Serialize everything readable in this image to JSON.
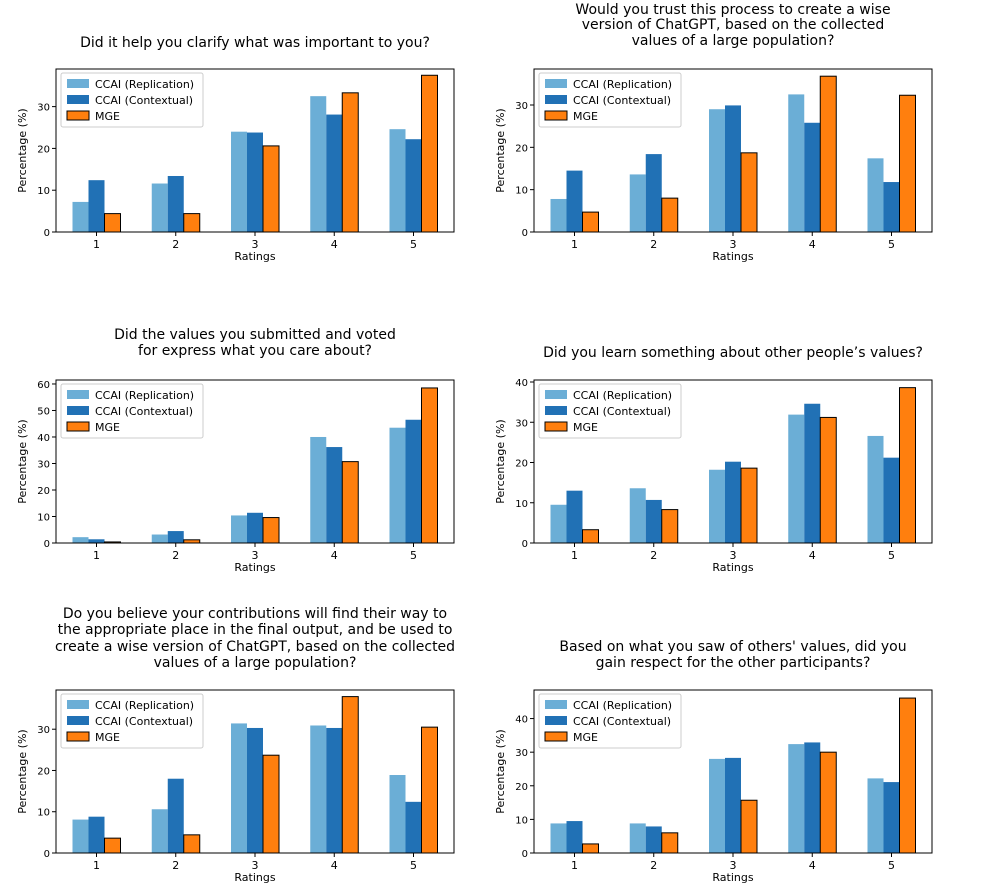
{
  "colors": {
    "replication": "#6baed6",
    "contextual": "#2171b5",
    "mge": "#ff7f0e",
    "axis": "#000000",
    "text": "#000000"
  },
  "chart_data": [
    {
      "type": "bar",
      "title": "Did it help you clarify what was important to you?",
      "xlabel": "Ratings",
      "ylabel": "Percentage (%)",
      "categories": [
        "1",
        "2",
        "3",
        "4",
        "5"
      ],
      "ylim": [
        0,
        39
      ],
      "yticks": [
        0,
        10,
        20,
        30
      ],
      "legend_position": "upper-left",
      "series": [
        {
          "name": "CCAI (Replication)",
          "values": [
            7.2,
            11.6,
            24.0,
            32.5,
            24.6
          ]
        },
        {
          "name": "CCAI (Contextual)",
          "values": [
            12.4,
            13.4,
            23.8,
            28.1,
            22.2
          ]
        },
        {
          "name": "MGE",
          "values": [
            4.4,
            4.4,
            20.6,
            33.3,
            37.5
          ]
        }
      ]
    },
    {
      "type": "bar",
      "title": "Would you trust this process to create a wise version of ChatGPT, based on the collected values of a large population?",
      "xlabel": "Ratings",
      "ylabel": "Percentage (%)",
      "categories": [
        "1",
        "2",
        "3",
        "4",
        "5"
      ],
      "ylim": [
        0,
        38.5
      ],
      "yticks": [
        0,
        10,
        20,
        30
      ],
      "legend_position": "upper-left",
      "series": [
        {
          "name": "CCAI (Replication)",
          "values": [
            7.8,
            13.6,
            29.0,
            32.5,
            17.4
          ]
        },
        {
          "name": "CCAI (Contextual)",
          "values": [
            14.5,
            18.4,
            29.9,
            25.8,
            11.8
          ]
        },
        {
          "name": "MGE",
          "values": [
            4.7,
            8.0,
            18.7,
            36.8,
            32.3
          ]
        }
      ]
    },
    {
      "type": "bar",
      "title": "Did the values you submitted and voted for express what you care about?",
      "xlabel": "Ratings",
      "ylabel": "Percentage (%)",
      "categories": [
        "1",
        "2",
        "3",
        "4",
        "5"
      ],
      "ylim": [
        0,
        61.5
      ],
      "yticks": [
        0,
        10,
        20,
        30,
        40,
        50,
        60
      ],
      "legend_position": "upper-left",
      "series": [
        {
          "name": "CCAI (Replication)",
          "values": [
            2.2,
            3.2,
            10.4,
            40.0,
            43.5
          ]
        },
        {
          "name": "CCAI (Contextual)",
          "values": [
            1.4,
            4.5,
            11.4,
            36.2,
            46.5
          ]
        },
        {
          "name": "MGE",
          "values": [
            0.4,
            1.2,
            9.6,
            30.7,
            58.5
          ]
        }
      ]
    },
    {
      "type": "bar",
      "title": "Did you learn something about other people’s values?",
      "xlabel": "Ratings",
      "ylabel": "Percentage (%)",
      "categories": [
        "1",
        "2",
        "3",
        "4",
        "5"
      ],
      "ylim": [
        0,
        40.5
      ],
      "yticks": [
        0,
        10,
        20,
        30,
        40
      ],
      "legend_position": "upper-left",
      "series": [
        {
          "name": "CCAI (Replication)",
          "values": [
            9.5,
            13.6,
            18.2,
            31.9,
            26.6
          ]
        },
        {
          "name": "CCAI (Contextual)",
          "values": [
            13.0,
            10.7,
            20.2,
            34.6,
            21.2
          ]
        },
        {
          "name": "MGE",
          "values": [
            3.3,
            8.3,
            18.6,
            31.2,
            38.6
          ]
        }
      ]
    },
    {
      "type": "bar",
      "title": "Do you believe your contributions will find their way to the appropriate place in the final output, and be used to create a wise version of ChatGPT, based on the collected values of a large population?",
      "xlabel": "Ratings",
      "ylabel": "Percentage (%)",
      "categories": [
        "1",
        "2",
        "3",
        "4",
        "5"
      ],
      "ylim": [
        0,
        39.5
      ],
      "yticks": [
        0,
        10,
        20,
        30
      ],
      "legend_position": "upper-left",
      "series": [
        {
          "name": "CCAI (Replication)",
          "values": [
            8.1,
            10.6,
            31.4,
            30.9,
            18.9
          ]
        },
        {
          "name": "CCAI (Contextual)",
          "values": [
            8.8,
            18.0,
            30.3,
            30.3,
            12.4
          ]
        },
        {
          "name": "MGE",
          "values": [
            3.6,
            4.4,
            23.7,
            37.9,
            30.5
          ]
        }
      ]
    },
    {
      "type": "bar",
      "title": "Based on what you saw of others' values, did you gain respect for the other participants?",
      "xlabel": "Ratings",
      "ylabel": "Percentage (%)",
      "categories": [
        "1",
        "2",
        "3",
        "4",
        "5"
      ],
      "ylim": [
        0,
        48.5
      ],
      "yticks": [
        0,
        10,
        20,
        30,
        40
      ],
      "legend_position": "upper-left",
      "series": [
        {
          "name": "CCAI (Replication)",
          "values": [
            8.8,
            8.8,
            28.0,
            32.4,
            22.2
          ]
        },
        {
          "name": "CCAI (Contextual)",
          "values": [
            9.5,
            7.9,
            28.3,
            32.9,
            21.1
          ]
        },
        {
          "name": "MGE",
          "values": [
            2.7,
            6.0,
            15.7,
            30.0,
            46.1
          ]
        }
      ]
    }
  ]
}
